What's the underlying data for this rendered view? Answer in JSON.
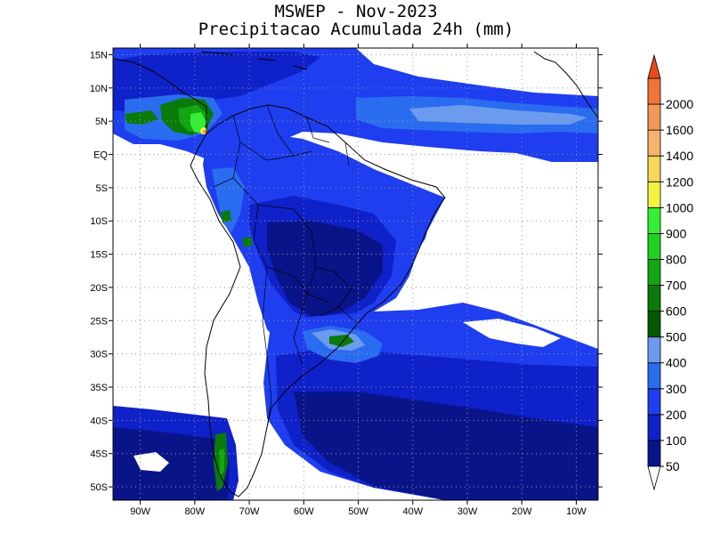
{
  "title": {
    "line1": "MSWEP - Nov-2023",
    "line2": "Precipitacao Acumulada 24h (mm)"
  },
  "map": {
    "lon_range": [
      -95,
      -6
    ],
    "lat_range": [
      -52,
      16
    ],
    "lat_ticks": [
      {
        "value": 15,
        "label": "15N"
      },
      {
        "value": 10,
        "label": "10N"
      },
      {
        "value": 5,
        "label": "5N"
      },
      {
        "value": 0,
        "label": "EQ"
      },
      {
        "value": -5,
        "label": "5S"
      },
      {
        "value": -10,
        "label": "10S"
      },
      {
        "value": -15,
        "label": "15S"
      },
      {
        "value": -20,
        "label": "20S"
      },
      {
        "value": -25,
        "label": "25S"
      },
      {
        "value": -30,
        "label": "30S"
      },
      {
        "value": -35,
        "label": "35S"
      },
      {
        "value": -40,
        "label": "40S"
      },
      {
        "value": -45,
        "label": "45S"
      },
      {
        "value": -50,
        "label": "50S"
      }
    ],
    "lon_ticks": [
      {
        "value": -90,
        "label": "90W"
      },
      {
        "value": -80,
        "label": "80W"
      },
      {
        "value": -70,
        "label": "70W"
      },
      {
        "value": -60,
        "label": "60W"
      },
      {
        "value": -50,
        "label": "50W"
      },
      {
        "value": -40,
        "label": "40W"
      },
      {
        "value": -30,
        "label": "30W"
      },
      {
        "value": -20,
        "label": "20W"
      },
      {
        "value": -10,
        "label": "10W"
      }
    ],
    "grid": "dotted"
  },
  "colorbar": {
    "levels": [
      {
        "label": "50",
        "color": "#0a1489"
      },
      {
        "label": "100",
        "color": "#0f21c8"
      },
      {
        "label": "200",
        "color": "#1e3ef0"
      },
      {
        "label": "300",
        "color": "#2a6cf0"
      },
      {
        "label": "400",
        "color": "#6a9bee"
      },
      {
        "label": "500",
        "color": "#045a04"
      },
      {
        "label": "600",
        "color": "#0a7a0a"
      },
      {
        "label": "700",
        "color": "#12a612"
      },
      {
        "label": "800",
        "color": "#1ed21e"
      },
      {
        "label": "900",
        "color": "#34f034"
      },
      {
        "label": "1000",
        "color": "#f4f440"
      },
      {
        "label": "1200",
        "color": "#f7d65c"
      },
      {
        "label": "1400",
        "color": "#f5b46a"
      },
      {
        "label": "1600",
        "color": "#f39858"
      },
      {
        "label": "2000",
        "color": "#f0743a"
      }
    ],
    "top_color": "#e84a1a"
  },
  "colors": {
    "ocean_blue": "#1e3ef0",
    "deep_blue": "#0f21c8",
    "navy": "#0a1489",
    "light_blue": "#2a6cf0",
    "pale_blue": "#6a9bee",
    "dark_green": "#0a7a0a",
    "green": "#12a612",
    "bright_green": "#34f034",
    "yellow": "#f4f440",
    "orange": "#f39858"
  }
}
